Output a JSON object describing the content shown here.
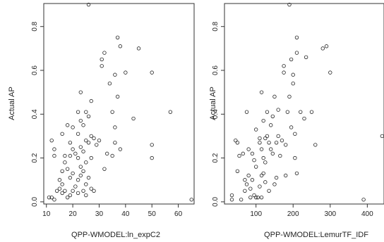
{
  "chart_data": [
    {
      "type": "scatter",
      "xlabel": "QPP-WMODEL:ln_expC2",
      "ylabel": "Actual AP",
      "xlim": [
        9,
        66
      ],
      "ylim": [
        -0.01,
        0.905
      ],
      "xticks": [
        10,
        20,
        30,
        40,
        50,
        60
      ],
      "yticks": [
        0.0,
        0.2,
        0.4,
        0.6,
        0.8
      ],
      "grid": false,
      "marker_color": "#222222",
      "points": [
        [
          26.0,
          0.9
        ],
        [
          11.0,
          0.02
        ],
        [
          12.0,
          0.02
        ],
        [
          13.0,
          0.01
        ],
        [
          12.0,
          0.28
        ],
        [
          13.0,
          0.24
        ],
        [
          13.0,
          0.21
        ],
        [
          14.0,
          0.05
        ],
        [
          15.0,
          0.1
        ],
        [
          15.0,
          0.06
        ],
        [
          16.0,
          0.31
        ],
        [
          16.0,
          0.14
        ],
        [
          16.0,
          0.08
        ],
        [
          16.0,
          0.04
        ],
        [
          17.0,
          0.21
        ],
        [
          17.0,
          0.18
        ],
        [
          17.0,
          0.05
        ],
        [
          18.0,
          0.35
        ],
        [
          18.0,
          0.15
        ],
        [
          18.0,
          0.02
        ],
        [
          19.0,
          0.27
        ],
        [
          19.0,
          0.21
        ],
        [
          19.0,
          0.11
        ],
        [
          19.0,
          0.03
        ],
        [
          20.0,
          0.34
        ],
        [
          20.0,
          0.24
        ],
        [
          20.0,
          0.13
        ],
        [
          20.0,
          0.05
        ],
        [
          21.0,
          0.22
        ],
        [
          21.0,
          0.07
        ],
        [
          22.0,
          0.41
        ],
        [
          22.0,
          0.31
        ],
        [
          22.0,
          0.2
        ],
        [
          22.0,
          0.1
        ],
        [
          22.0,
          0.04
        ],
        [
          23.0,
          0.5
        ],
        [
          23.0,
          0.37
        ],
        [
          23.0,
          0.25
        ],
        [
          23.0,
          0.16
        ],
        [
          23.0,
          0.12
        ],
        [
          24.0,
          0.35
        ],
        [
          24.0,
          0.23
        ],
        [
          24.0,
          0.14
        ],
        [
          24.0,
          0.05
        ],
        [
          25.0,
          0.41
        ],
        [
          25.0,
          0.28
        ],
        [
          25.0,
          0.18
        ],
        [
          25.0,
          0.08
        ],
        [
          25.0,
          0.03
        ],
        [
          26.0,
          0.39
        ],
        [
          26.0,
          0.27
        ],
        [
          26.0,
          0.11
        ],
        [
          27.0,
          0.46
        ],
        [
          27.0,
          0.3
        ],
        [
          27.0,
          0.2
        ],
        [
          27.0,
          0.06
        ],
        [
          28.0,
          0.29
        ],
        [
          28.0,
          0.05
        ],
        [
          29.0,
          0.26
        ],
        [
          30.0,
          0.28
        ],
        [
          31.0,
          0.65
        ],
        [
          31.0,
          0.62
        ],
        [
          32.0,
          0.68
        ],
        [
          32.0,
          0.15
        ],
        [
          33.0,
          0.22
        ],
        [
          34.0,
          0.54
        ],
        [
          35.0,
          0.41
        ],
        [
          35.0,
          0.21
        ],
        [
          36.0,
          0.58
        ],
        [
          36.0,
          0.34
        ],
        [
          36.0,
          0.27
        ],
        [
          37.0,
          0.75
        ],
        [
          37.0,
          0.48
        ],
        [
          38.0,
          0.71
        ],
        [
          38.0,
          0.24
        ],
        [
          40.0,
          0.59
        ],
        [
          43.0,
          0.38
        ],
        [
          45.0,
          0.7
        ],
        [
          50.0,
          0.59
        ],
        [
          50.0,
          0.26
        ],
        [
          50.0,
          0.2
        ],
        [
          57.0,
          0.41
        ],
        [
          65.0,
          0.01
        ]
      ]
    },
    {
      "type": "scatter",
      "xlabel": "QPP-WMODEL:LemurTF_IDF",
      "ylabel": "Actual AP",
      "xlim": [
        15,
        445
      ],
      "ylim": [
        -0.01,
        0.905
      ],
      "xticks": [
        100,
        200,
        300,
        400
      ],
      "yticks": [
        0.0,
        0.2,
        0.4,
        0.6,
        0.8
      ],
      "grid": false,
      "marker_color": "#222222",
      "points": [
        [
          190,
          0.9
        ],
        [
          35,
          0.03
        ],
        [
          35,
          0.01
        ],
        [
          45,
          0.28
        ],
        [
          50,
          0.27
        ],
        [
          50,
          0.14
        ],
        [
          55,
          0.21
        ],
        [
          60,
          0.01
        ],
        [
          65,
          0.22
        ],
        [
          70,
          0.1
        ],
        [
          70,
          0.05
        ],
        [
          75,
          0.41
        ],
        [
          75,
          0.08
        ],
        [
          80,
          0.24
        ],
        [
          80,
          0.12
        ],
        [
          85,
          0.06
        ],
        [
          85,
          0.02
        ],
        [
          90,
          0.22
        ],
        [
          90,
          0.1
        ],
        [
          95,
          0.19
        ],
        [
          95,
          0.03
        ],
        [
          100,
          0.33
        ],
        [
          100,
          0.16
        ],
        [
          100,
          0.02
        ],
        [
          105,
          0.02
        ],
        [
          110,
          0.29
        ],
        [
          110,
          0.27
        ],
        [
          110,
          0.07
        ],
        [
          115,
          0.5
        ],
        [
          115,
          0.24
        ],
        [
          115,
          0.12
        ],
        [
          115,
          0.02
        ],
        [
          120,
          0.37
        ],
        [
          120,
          0.2
        ],
        [
          120,
          0.13
        ],
        [
          125,
          0.29
        ],
        [
          125,
          0.18
        ],
        [
          125,
          0.09
        ],
        [
          130,
          0.41
        ],
        [
          130,
          0.3
        ],
        [
          135,
          0.27
        ],
        [
          135,
          0.05
        ],
        [
          140,
          0.35
        ],
        [
          140,
          0.24
        ],
        [
          145,
          0.39
        ],
        [
          145,
          0.22
        ],
        [
          150,
          0.48
        ],
        [
          150,
          0.08
        ],
        [
          155,
          0.27
        ],
        [
          155,
          0.11
        ],
        [
          160,
          0.42
        ],
        [
          160,
          0.3
        ],
        [
          165,
          0.21
        ],
        [
          170,
          0.28
        ],
        [
          175,
          0.62
        ],
        [
          175,
          0.59
        ],
        [
          180,
          0.26
        ],
        [
          180,
          0.12
        ],
        [
          185,
          0.41
        ],
        [
          190,
          0.48
        ],
        [
          195,
          0.65
        ],
        [
          195,
          0.34
        ],
        [
          200,
          0.58
        ],
        [
          200,
          0.54
        ],
        [
          205,
          0.31
        ],
        [
          205,
          0.2
        ],
        [
          210,
          0.75
        ],
        [
          210,
          0.68
        ],
        [
          210,
          0.13
        ],
        [
          220,
          0.41
        ],
        [
          230,
          0.38
        ],
        [
          235,
          0.66
        ],
        [
          250,
          0.41
        ],
        [
          260,
          0.26
        ],
        [
          280,
          0.7
        ],
        [
          290,
          0.71
        ],
        [
          300,
          0.59
        ],
        [
          390,
          0.01
        ],
        [
          440,
          0.3
        ]
      ]
    }
  ]
}
